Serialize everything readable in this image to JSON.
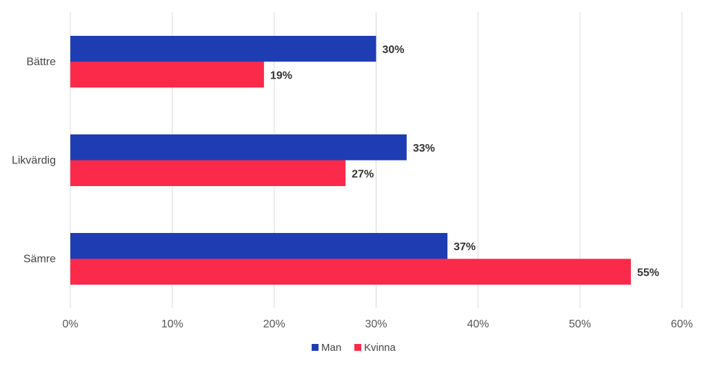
{
  "chart_data": {
    "type": "bar",
    "orientation": "horizontal",
    "categories": [
      "Bättre",
      "Likvärdig",
      "Sämre"
    ],
    "series": [
      {
        "name": "Man",
        "values": [
          30,
          33,
          37
        ],
        "labels": [
          "30%",
          "33%",
          "37%"
        ],
        "color": "#1f3db3"
      },
      {
        "name": "Kvinna",
        "values": [
          19,
          27,
          55
        ],
        "labels": [
          "19%",
          "27%",
          "55%"
        ],
        "color": "#fb2a4a"
      }
    ],
    "xlim": [
      0,
      60
    ],
    "xticks": [
      0,
      10,
      20,
      30,
      40,
      50,
      60
    ],
    "xtick_labels": [
      "0%",
      "10%",
      "20%",
      "30%",
      "40%",
      "50%",
      "60%"
    ],
    "grid": true,
    "legend_position": "bottom"
  }
}
